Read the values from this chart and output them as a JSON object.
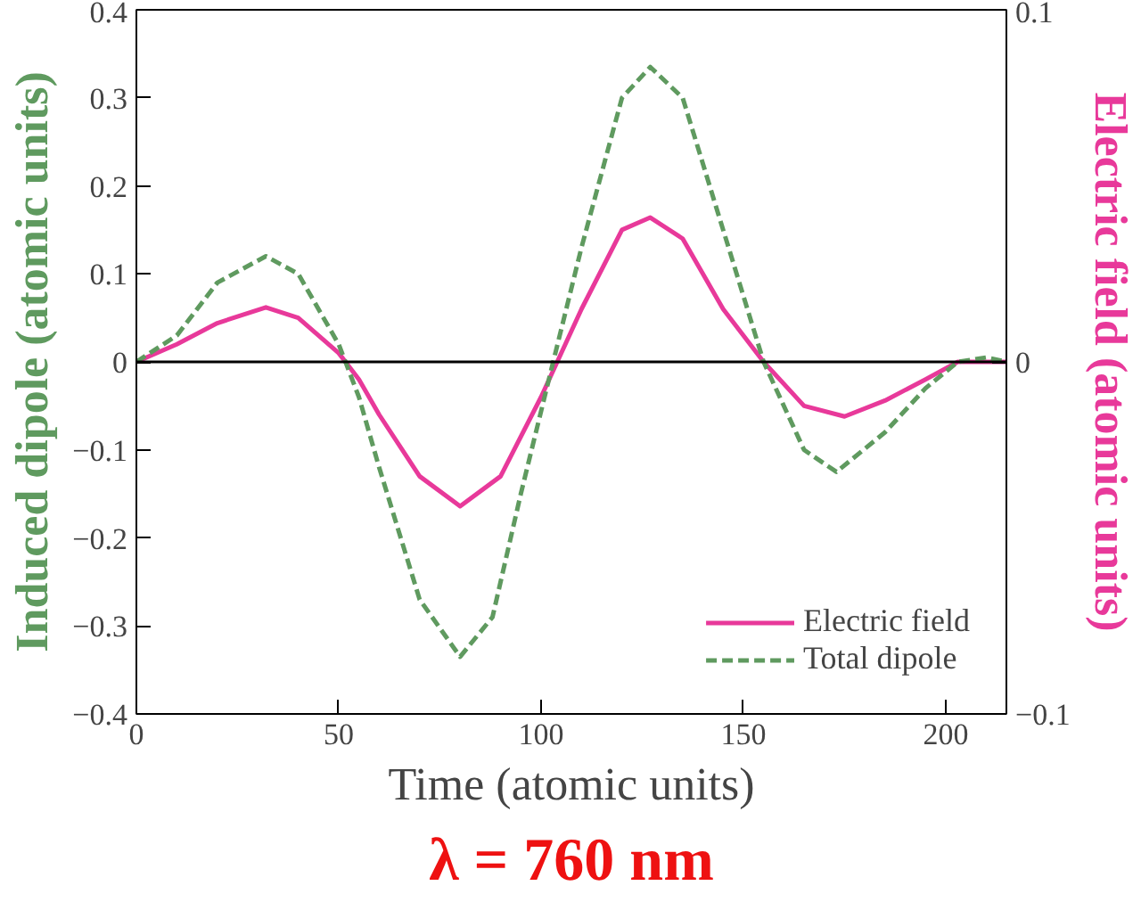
{
  "chart_data": {
    "type": "line",
    "xlabel": "Time (atomic units)",
    "ylabel": "Induced dipole (atomic units)",
    "y2label": "Electric field (atomic units)",
    "x": [
      0,
      10,
      20,
      32,
      40,
      50,
      55,
      60,
      70,
      80,
      88,
      95,
      103,
      110,
      120,
      127,
      135,
      145,
      155,
      165,
      173,
      185,
      195,
      203,
      210,
      215
    ],
    "series": [
      {
        "name": "Electric field",
        "color": "#e8399a",
        "axis": "y2",
        "line_style": "solid",
        "x": [
          0,
          10,
          20,
          32,
          40,
          50,
          55,
          60,
          70,
          80,
          90,
          100,
          104,
          110,
          120,
          127,
          135,
          145,
          155,
          165,
          175,
          185,
          195,
          203,
          215
        ],
        "values": [
          0,
          0.005,
          0.011,
          0.0155,
          0.0125,
          0.0025,
          -0.005,
          -0.015,
          -0.0325,
          -0.041,
          -0.0325,
          -0.01,
          0,
          0.015,
          0.0375,
          0.041,
          0.035,
          0.015,
          0,
          -0.0125,
          -0.0155,
          -0.011,
          -0.005,
          0,
          0
        ]
      },
      {
        "name": "Total dipole",
        "color": "#5f9a5f",
        "axis": "y",
        "line_style": "dashed",
        "values": [
          0,
          0.03,
          0.09,
          0.12,
          0.1,
          0.02,
          -0.04,
          -0.12,
          -0.27,
          -0.335,
          -0.29,
          -0.15,
          0,
          0.13,
          0.3,
          0.335,
          0.3,
          0.15,
          0,
          -0.1,
          -0.125,
          -0.08,
          -0.03,
          0,
          0.005,
          0
        ]
      }
    ],
    "xlim": [
      0,
      215
    ],
    "xticks": [
      0,
      50,
      100,
      150,
      200
    ],
    "ylim": [
      -0.4,
      0.4
    ],
    "yticks": [
      -0.4,
      -0.3,
      -0.2,
      -0.1,
      0,
      0.1,
      0.2,
      0.3,
      0.4
    ],
    "y2lim": [
      -0.1,
      0.1
    ],
    "y2ticks": [
      -0.1,
      0,
      0.1
    ],
    "ref_lines": [
      {
        "axis": "y",
        "value": 0,
        "color": "#000000"
      }
    ],
    "annotations": [
      "λ = 760 nm"
    ],
    "grid": false,
    "legend": "bottom right",
    "marker": "none"
  }
}
